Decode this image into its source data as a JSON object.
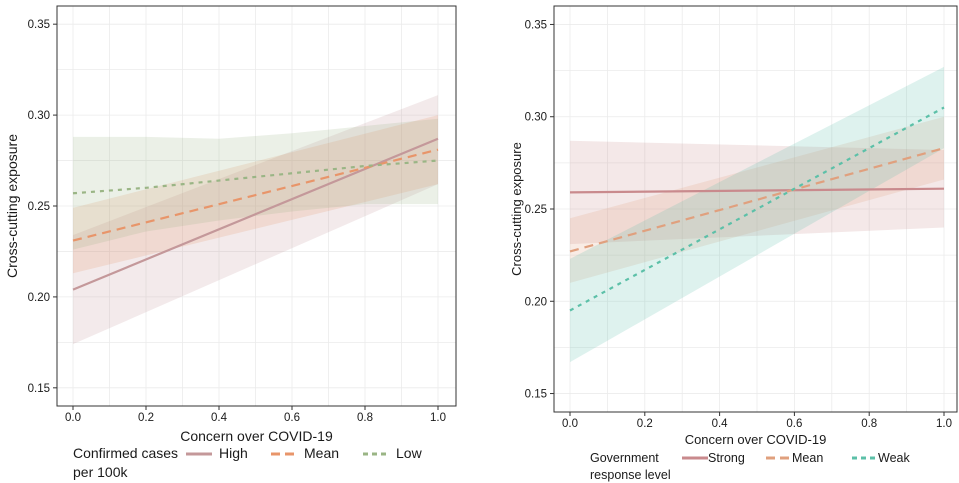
{
  "chart_data": [
    {
      "type": "line",
      "xlabel": "Concern over COVID-19",
      "ylabel": "Cross-cutting exposure",
      "xlim": [
        0,
        1
      ],
      "ylim": [
        0.14,
        0.36
      ],
      "xticks": [
        0.0,
        0.2,
        0.4,
        0.6,
        0.8,
        1.0
      ],
      "xtick_labels": [
        "0.0",
        "0.2",
        "0.4",
        "0.6",
        "0.8",
        "1.0"
      ],
      "yticks": [
        0.15,
        0.2,
        0.25,
        0.3,
        0.35
      ],
      "ytick_labels": [
        "0.15",
        "0.20",
        "0.25",
        "0.30",
        "0.35"
      ],
      "grid": true,
      "legend": {
        "title": [
          "Confirmed cases",
          "per 100k"
        ],
        "position": "bottom"
      },
      "series": [
        {
          "name": "High",
          "color": "#c4989a",
          "dash": "solid",
          "x": [
            0,
            1
          ],
          "y": [
            0.204,
            0.287
          ],
          "lower": [
            0.174,
            0.262
          ],
          "upper": [
            0.234,
            0.311
          ]
        },
        {
          "name": "Mean",
          "color": "#e8956a",
          "dash": "long",
          "x": [
            0,
            1
          ],
          "y": [
            0.231,
            0.281
          ],
          "lower": [
            0.213,
            0.262
          ],
          "upper": [
            0.249,
            0.3
          ]
        },
        {
          "name": "Low",
          "color": "#9ab585",
          "dash": "short",
          "x": [
            0,
            0.2,
            0.4,
            0.6,
            0.8,
            1.0
          ],
          "y": [
            0.257,
            0.26,
            0.264,
            0.268,
            0.272,
            0.275
          ],
          "lower": [
            0.226,
            0.236,
            0.242,
            0.247,
            0.251,
            0.251
          ],
          "upper": [
            0.288,
            0.288,
            0.287,
            0.29,
            0.294,
            0.298
          ]
        }
      ]
    },
    {
      "type": "line",
      "xlabel": "Concern over COVID-19",
      "ylabel": "Cross-cutting exposure",
      "xlim": [
        0,
        1
      ],
      "ylim": [
        0.14,
        0.36
      ],
      "xticks": [
        0.0,
        0.2,
        0.4,
        0.6,
        0.8,
        1.0
      ],
      "xtick_labels": [
        "0.0",
        "0.2",
        "0.4",
        "0.6",
        "0.8",
        "1.0"
      ],
      "yticks": [
        0.15,
        0.2,
        0.25,
        0.3,
        0.35
      ],
      "ytick_labels": [
        "0.15",
        "0.20",
        "0.25",
        "0.30",
        "0.35"
      ],
      "grid": true,
      "legend": {
        "title": [
          "Government",
          "response level"
        ],
        "position": "bottom"
      },
      "series": [
        {
          "name": "Strong",
          "color": "#c98a8d",
          "dash": "solid",
          "x": [
            0,
            1
          ],
          "y": [
            0.259,
            0.261
          ],
          "lower": [
            0.231,
            0.24
          ],
          "upper": [
            0.287,
            0.282
          ]
        },
        {
          "name": "Mean",
          "color": "#e0a07e",
          "dash": "long",
          "x": [
            0,
            1
          ],
          "y": [
            0.227,
            0.283
          ],
          "lower": [
            0.21,
            0.266
          ],
          "upper": [
            0.245,
            0.3
          ]
        },
        {
          "name": "Weak",
          "color": "#5cc0a8",
          "dash": "short",
          "x": [
            0,
            1
          ],
          "y": [
            0.195,
            0.305
          ],
          "lower": [
            0.167,
            0.283
          ],
          "upper": [
            0.223,
            0.327
          ]
        }
      ]
    }
  ]
}
